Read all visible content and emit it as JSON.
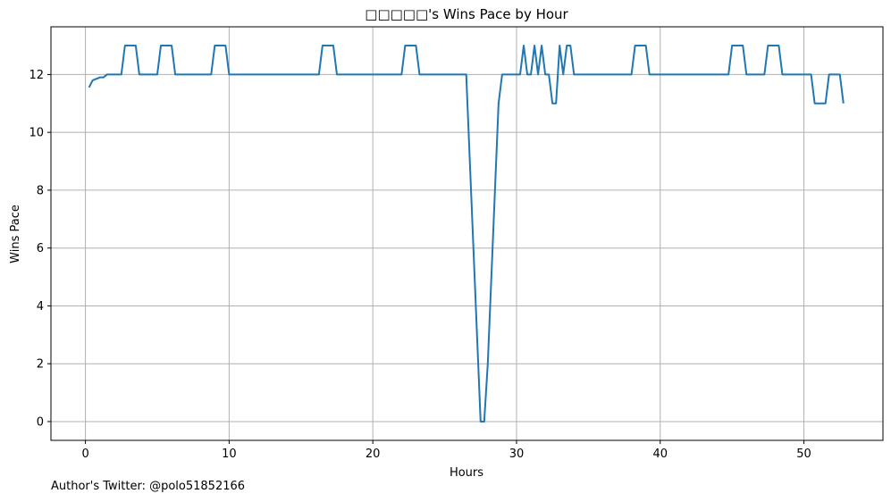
{
  "chart_data": {
    "type": "line",
    "title": "□□□□□'s Wins Pace by Hour",
    "xlabel": "Hours",
    "ylabel": "Wins Pace",
    "xlim": [
      -2.4,
      55.5
    ],
    "ylim": [
      -0.65,
      13.65
    ],
    "x_ticks": [
      0,
      10,
      20,
      30,
      40,
      50
    ],
    "y_ticks": [
      0,
      2,
      4,
      6,
      8,
      10,
      12
    ],
    "grid": true,
    "line_color": "#1f77b4",
    "series": [
      {
        "x": [
          0.25,
          0.5,
          0.75,
          1.0,
          1.25,
          1.5,
          2.5,
          2.75,
          3.5,
          3.75,
          5.0,
          5.25,
          6.0,
          6.25,
          8.75,
          9.0,
          9.75,
          10.0,
          16.25,
          16.5,
          17.25,
          17.5,
          22.0,
          22.25,
          23.0,
          23.25,
          26.5,
          27.5,
          27.75,
          28.0,
          28.5,
          28.75,
          29.0,
          30.25,
          30.5,
          30.75,
          31.0,
          31.25,
          31.5,
          31.75,
          32.0,
          32.25,
          32.5,
          32.75,
          33.0,
          33.25,
          33.5,
          33.75,
          34.0,
          38.0,
          38.25,
          39.0,
          39.25,
          44.75,
          45.0,
          45.75,
          46.0,
          47.25,
          47.5,
          48.25,
          48.5,
          50.5,
          50.75,
          51.5,
          51.75,
          52.5,
          52.75
        ],
        "y": [
          11.55,
          11.8,
          11.85,
          11.9,
          11.9,
          12,
          12,
          13,
          13,
          12,
          12,
          13,
          13,
          12,
          12,
          13,
          13,
          12,
          12,
          13,
          13,
          12,
          12,
          13,
          13,
          12,
          12,
          0,
          0,
          2,
          8,
          11,
          12,
          12,
          13,
          12,
          12,
          13,
          12,
          13,
          12,
          12,
          11,
          11,
          13,
          12,
          13,
          13,
          12,
          12,
          13,
          13,
          12,
          12,
          13,
          13,
          12,
          12,
          13,
          13,
          12,
          12,
          11,
          11,
          12,
          12,
          11
        ]
      }
    ]
  },
  "footer": {
    "note": "Author's Twitter: @polo51852166"
  }
}
